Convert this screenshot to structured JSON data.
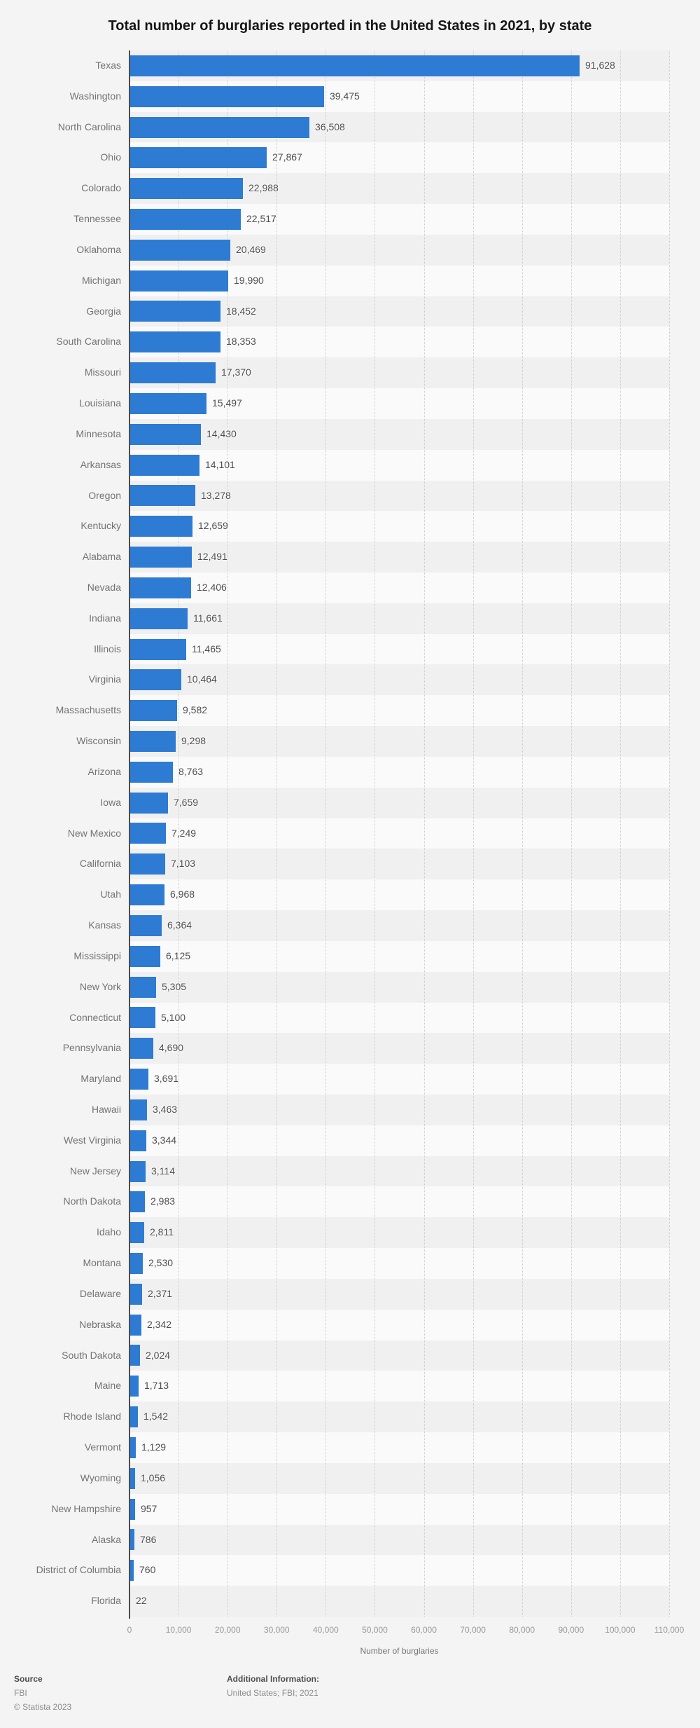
{
  "title": "Total number of burglaries reported in the United States in 2021, by state",
  "chart_data": {
    "type": "bar",
    "orientation": "horizontal",
    "title": "Total number of burglaries reported in the United States in 2021, by state",
    "xlabel": "Number of burglaries",
    "xlim": [
      0,
      110000
    ],
    "x_ticks": [
      "0",
      "10,000",
      "20,000",
      "30,000",
      "40,000",
      "50,000",
      "60,000",
      "70,000",
      "80,000",
      "90,000",
      "100,000",
      "110,000"
    ],
    "grid": "vertical-dotted",
    "legend": "none",
    "bar_color": "#2d7bd3",
    "categories": [
      "Texas",
      "Washington",
      "North Carolina",
      "Ohio",
      "Colorado",
      "Tennessee",
      "Oklahoma",
      "Michigan",
      "Georgia",
      "South Carolina",
      "Missouri",
      "Louisiana",
      "Minnesota",
      "Arkansas",
      "Oregon",
      "Kentucky",
      "Alabama",
      "Nevada",
      "Indiana",
      "Illinois",
      "Virginia",
      "Massachusetts",
      "Wisconsin",
      "Arizona",
      "Iowa",
      "New Mexico",
      "California",
      "Utah",
      "Kansas",
      "Mississippi",
      "New York",
      "Connecticut",
      "Pennsylvania",
      "Maryland",
      "Hawaii",
      "West Virginia",
      "New Jersey",
      "North Dakota",
      "Idaho",
      "Montana",
      "Delaware",
      "Nebraska",
      "South Dakota",
      "Maine",
      "Rhode Island",
      "Vermont",
      "Wyoming",
      "New Hampshire",
      "Alaska",
      "District of Columbia",
      "Florida"
    ],
    "values": [
      91628,
      39475,
      36508,
      27867,
      22988,
      22517,
      20469,
      19990,
      18452,
      18353,
      17370,
      15497,
      14430,
      14101,
      13278,
      12659,
      12491,
      12406,
      11661,
      11465,
      10464,
      9582,
      9298,
      8763,
      7659,
      7249,
      7103,
      6968,
      6364,
      6125,
      5305,
      5100,
      4690,
      3691,
      3463,
      3344,
      3114,
      2983,
      2811,
      2530,
      2371,
      2342,
      2024,
      1713,
      1542,
      1129,
      1056,
      957,
      786,
      760,
      22
    ]
  },
  "footer": {
    "source_label": "Source",
    "source_value": "FBI",
    "copyright": "© Statista 2023",
    "additional_label": "Additional Information:",
    "additional_value": "United States; FBI; 2021"
  }
}
